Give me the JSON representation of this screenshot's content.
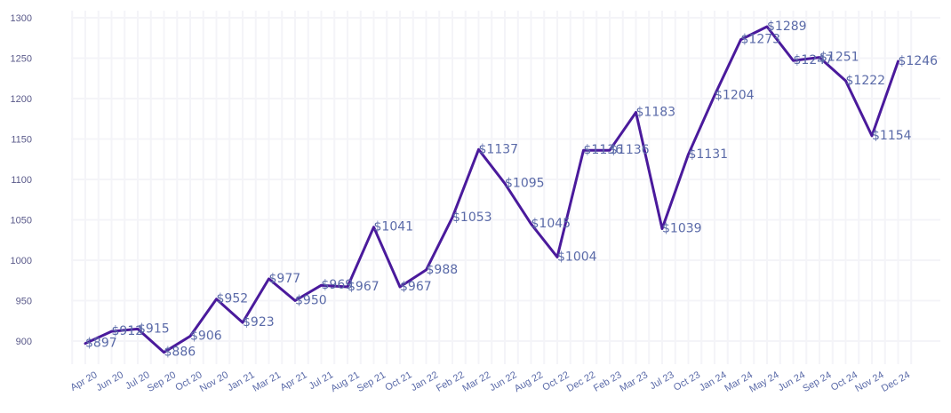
{
  "chart_data": {
    "type": "line",
    "title": "",
    "xlabel": "",
    "ylabel": "",
    "ylim": [
      863,
      1312
    ],
    "yticks": [
      900,
      950,
      1000,
      1050,
      1100,
      1150,
      1200,
      1250,
      1300
    ],
    "grid": true,
    "line_color": "#4a1a9c",
    "label_color": "#5a6aa8",
    "value_prefix": "$",
    "categories": [
      "Apr 20",
      "Jun 20",
      "Jul 20",
      "Sep 20",
      "Oct 20",
      "Nov 20",
      "Jan 21",
      "Mar 21",
      "Apr 21",
      "Jul 21",
      "Aug 21",
      "Sep 21",
      "Oct 21",
      "Jan 22",
      "Feb 22",
      "Mar 22",
      "Jun 22",
      "Aug 22",
      "Oct 22",
      "Dec 22",
      "Feb 23",
      "Mar 23",
      "Jul 23",
      "Oct 23",
      "Jan 24",
      "Mar 24",
      "May 24",
      "Jun 24",
      "Sep 24",
      "Oct 24",
      "Nov 24",
      "Dec 24"
    ],
    "series": [
      {
        "values": [
          897,
          912,
          915,
          886,
          906,
          952,
          923,
          977,
          950,
          969,
          967,
          1041,
          967,
          988,
          1053,
          1137,
          1095,
          1045,
          1004,
          1136,
          1136,
          1183,
          1039,
          1131,
          1204,
          1273,
          1289,
          1247,
          1251,
          1222,
          1154,
          1246
        ],
        "labels": [
          "$897",
          "$912",
          "$915",
          "$886",
          "$906",
          "$952",
          "$923",
          "$977",
          "$950",
          "$969",
          "$967",
          "$1041",
          "$967",
          "$988",
          "$1053",
          "$1137",
          "$1095",
          "$1045",
          "$1004",
          "$1136",
          "$1136",
          "$1183",
          "$1039",
          "$1131",
          "$1204",
          "$1273",
          "$1289",
          "$1247",
          "$1251",
          "$1222",
          "$1154",
          "$1246"
        ]
      }
    ]
  }
}
